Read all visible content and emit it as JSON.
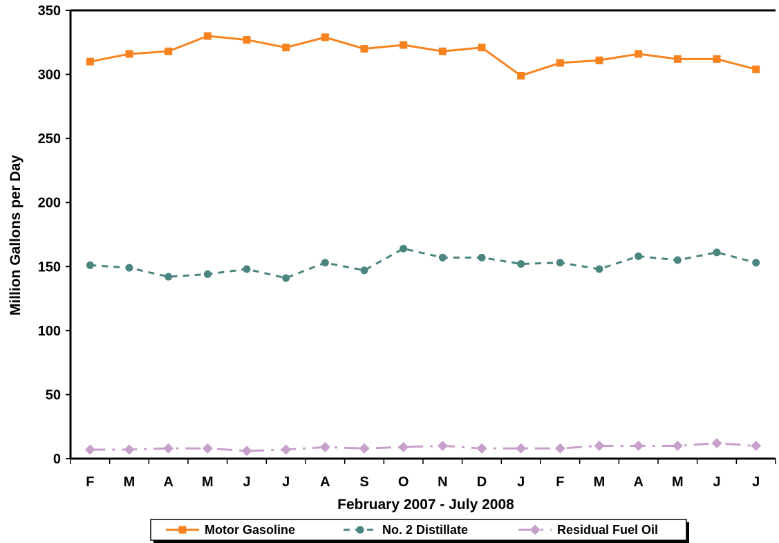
{
  "chart_data": {
    "type": "line",
    "categories": [
      "F",
      "M",
      "A",
      "M",
      "J",
      "J",
      "A",
      "S",
      "O",
      "N",
      "D",
      "J",
      "F",
      "M",
      "A",
      "M",
      "J",
      "J"
    ],
    "xlabel": "February 2007 - July 2008",
    "ylabel": "Million Gallons per Day",
    "ylim": [
      0,
      350
    ],
    "yticks": [
      0,
      50,
      100,
      150,
      200,
      250,
      300,
      350
    ],
    "grid": false,
    "legend_position": "bottom",
    "series": [
      {
        "name": "Motor Gasoline",
        "color": "#f7821e",
        "line_style": "solid",
        "marker": "square",
        "values": [
          310,
          316,
          318,
          330,
          327,
          321,
          329,
          320,
          323,
          318,
          321,
          299,
          309,
          311,
          316,
          312,
          312,
          304
        ]
      },
      {
        "name": "No. 2 Distillate",
        "color": "#4a8580",
        "line_style": "dashed",
        "marker": "circle",
        "values": [
          151,
          149,
          142,
          144,
          148,
          141,
          153,
          147,
          164,
          157,
          157,
          152,
          153,
          148,
          158,
          155,
          161,
          153
        ]
      },
      {
        "name": "Residual Fuel Oil",
        "color": "#c8a0cc",
        "line_style": "dashdot",
        "marker": "diamond",
        "values": [
          7,
          7,
          8,
          8,
          6,
          7,
          9,
          8,
          9,
          10,
          8,
          8,
          8,
          10,
          10,
          10,
          12,
          10
        ]
      }
    ]
  }
}
